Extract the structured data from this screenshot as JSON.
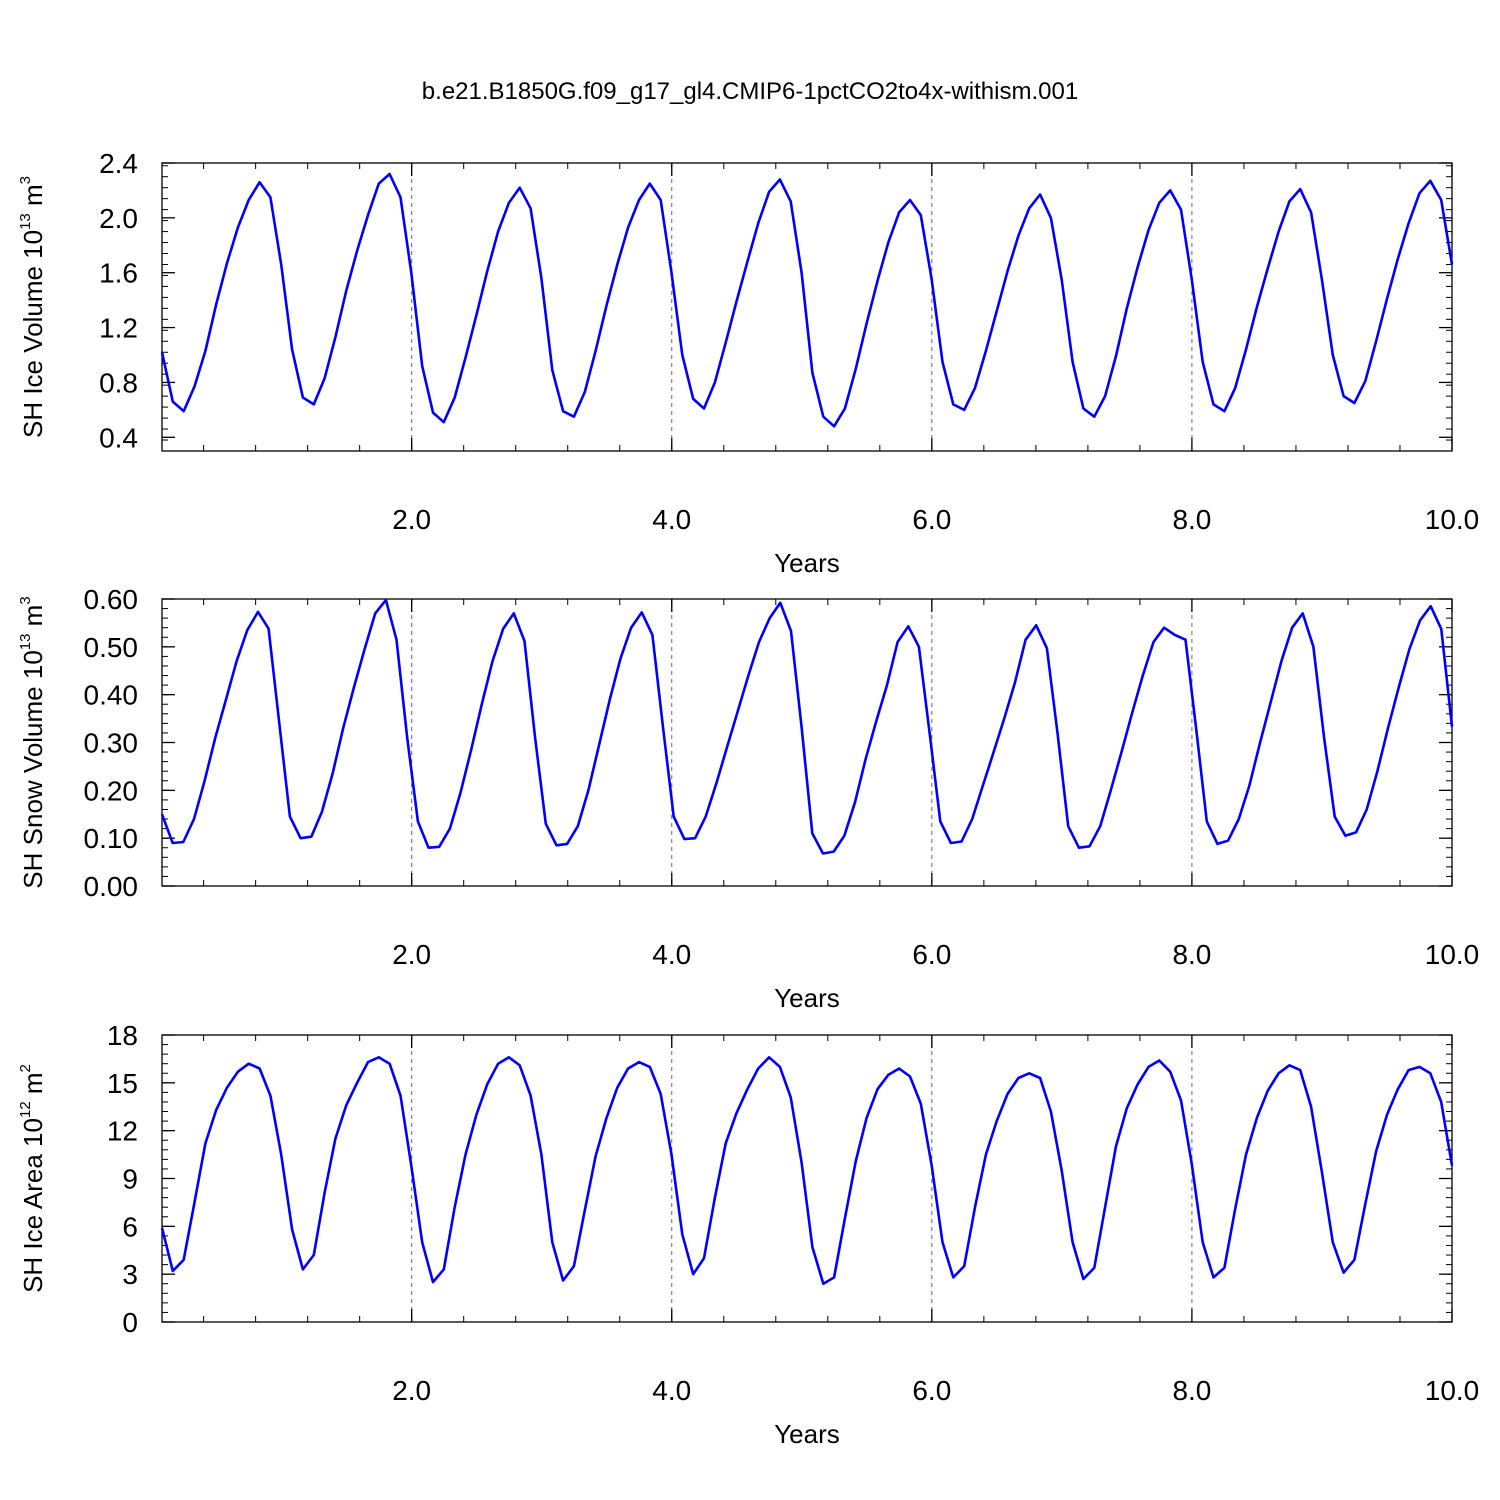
{
  "title": "b.e21.B1850G.f09_g17_gl4.CMIP6-1pctCO2to4x-withism.001",
  "colors": {
    "series": "#0000ff",
    "axis": "#000000",
    "grid": "#666666"
  },
  "chart_data": [
    {
      "type": "line",
      "xlabel": "Years",
      "ylabel": {
        "prefix": "SH Ice Volume 10",
        "exp": "13",
        "unit": " m",
        "unit_exp": "3"
      },
      "xlim": [
        0.08,
        10.0
      ],
      "ylim": [
        0.3,
        2.4
      ],
      "x_ticks": [
        2,
        4,
        6,
        8,
        10
      ],
      "x_tick_labels": [
        "2.0",
        "4.0",
        "6.0",
        "8.0",
        "10.0"
      ],
      "y_ticks": [
        0.4,
        0.8,
        1.2,
        1.6,
        2.0,
        2.4
      ],
      "y_tick_labels": [
        "0.4",
        "0.8",
        "1.2",
        "1.6",
        "2.0",
        "2.4"
      ],
      "grid_x": [
        2,
        4,
        6,
        8
      ],
      "series": [
        {
          "values": [
            1.02,
            0.66,
            0.59,
            0.77,
            1.03,
            1.37,
            1.67,
            1.93,
            2.13,
            2.26,
            2.15,
            1.66,
            1.04,
            0.69,
            0.64,
            0.83,
            1.13,
            1.47,
            1.76,
            2.02,
            2.25,
            2.32,
            2.15,
            1.6,
            0.92,
            0.58,
            0.51,
            0.69,
            0.98,
            1.29,
            1.61,
            1.9,
            2.11,
            2.22,
            2.07,
            1.56,
            0.89,
            0.59,
            0.55,
            0.73,
            1.03,
            1.36,
            1.66,
            1.93,
            2.13,
            2.25,
            2.13,
            1.6,
            1.0,
            0.68,
            0.61,
            0.8,
            1.09,
            1.39,
            1.68,
            1.96,
            2.19,
            2.28,
            2.12,
            1.6,
            0.87,
            0.55,
            0.48,
            0.61,
            0.9,
            1.23,
            1.54,
            1.82,
            2.04,
            2.13,
            2.02,
            1.55,
            0.95,
            0.64,
            0.6,
            0.76,
            1.03,
            1.32,
            1.61,
            1.87,
            2.07,
            2.17,
            2.0,
            1.55,
            0.95,
            0.61,
            0.55,
            0.7,
            0.99,
            1.34,
            1.64,
            1.91,
            2.11,
            2.2,
            2.06,
            1.55,
            0.95,
            0.64,
            0.59,
            0.76,
            1.04,
            1.35,
            1.63,
            1.9,
            2.12,
            2.21,
            2.04,
            1.55,
            1.0,
            0.7,
            0.65,
            0.81,
            1.1,
            1.41,
            1.7,
            1.96,
            2.18,
            2.27,
            2.13,
            1.66
          ]
        }
      ]
    },
    {
      "type": "line",
      "xlabel": "Years",
      "ylabel": {
        "prefix": "SH Snow Volume 10",
        "exp": "13",
        "unit": " m",
        "unit_exp": "3"
      },
      "xlim": [
        0.08,
        10.0
      ],
      "ylim": [
        0.0,
        0.6
      ],
      "x_ticks": [
        2,
        4,
        6,
        8,
        10
      ],
      "x_tick_labels": [
        "2.0",
        "4.0",
        "6.0",
        "8.0",
        "10.0"
      ],
      "y_ticks": [
        0.0,
        0.1,
        0.2,
        0.3,
        0.4,
        0.5,
        0.6
      ],
      "y_tick_labels": [
        "0.00",
        "0.10",
        "0.20",
        "0.30",
        "0.40",
        "0.50",
        "0.60"
      ],
      "grid_x": [
        2,
        4,
        6,
        8
      ],
      "series": [
        {
          "values": [
            0.15,
            0.09,
            0.092,
            0.14,
            0.22,
            0.31,
            0.39,
            0.47,
            0.535,
            0.573,
            0.538,
            0.34,
            0.145,
            0.1,
            0.103,
            0.155,
            0.235,
            0.33,
            0.415,
            0.495,
            0.57,
            0.598,
            0.515,
            0.31,
            0.135,
            0.08,
            0.082,
            0.12,
            0.195,
            0.285,
            0.38,
            0.47,
            0.538,
            0.57,
            0.512,
            0.31,
            0.13,
            0.085,
            0.088,
            0.125,
            0.2,
            0.295,
            0.39,
            0.475,
            0.54,
            0.572,
            0.525,
            0.33,
            0.145,
            0.098,
            0.1,
            0.145,
            0.215,
            0.29,
            0.365,
            0.44,
            0.51,
            0.56,
            0.592,
            0.533,
            0.33,
            0.11,
            0.068,
            0.072,
            0.105,
            0.175,
            0.265,
            0.345,
            0.42,
            0.51,
            0.543,
            0.5,
            0.32,
            0.135,
            0.09,
            0.093,
            0.14,
            0.21,
            0.28,
            0.35,
            0.425,
            0.515,
            0.545,
            0.497,
            0.32,
            0.125,
            0.08,
            0.083,
            0.125,
            0.2,
            0.28,
            0.362,
            0.44,
            0.51,
            0.54,
            0.525,
            0.515,
            0.33,
            0.135,
            0.088,
            0.095,
            0.14,
            0.21,
            0.3,
            0.385,
            0.47,
            0.54,
            0.57,
            0.5,
            0.31,
            0.145,
            0.105,
            0.112,
            0.16,
            0.24,
            0.33,
            0.415,
            0.495,
            0.555,
            0.585,
            0.537,
            0.333
          ]
        }
      ]
    },
    {
      "type": "line",
      "xlabel": "Years",
      "ylabel": {
        "prefix": "SH Ice Area 10",
        "exp": "12",
        "unit": " m",
        "unit_exp": "2"
      },
      "xlim": [
        0.08,
        10.0
      ],
      "ylim": [
        0,
        18
      ],
      "x_ticks": [
        2,
        4,
        6,
        8,
        10
      ],
      "x_tick_labels": [
        "2.0",
        "4.0",
        "6.0",
        "8.0",
        "10.0"
      ],
      "y_ticks": [
        0,
        3,
        6,
        9,
        12,
        15,
        18
      ],
      "y_tick_labels": [
        "0",
        "3",
        "6",
        "9",
        "12",
        "15",
        "18"
      ],
      "grid_x": [
        2,
        4,
        6,
        8
      ],
      "series": [
        {
          "values": [
            5.9,
            3.2,
            3.9,
            7.5,
            11.2,
            13.3,
            14.7,
            15.7,
            16.2,
            15.9,
            14.2,
            10.5,
            5.8,
            3.3,
            4.2,
            8.1,
            11.5,
            13.6,
            15.0,
            16.3,
            16.6,
            16.2,
            14.2,
            9.8,
            5.0,
            2.5,
            3.3,
            7.2,
            10.5,
            13.0,
            14.9,
            16.2,
            16.6,
            16.1,
            14.2,
            10.5,
            5.0,
            2.6,
            3.5,
            7.0,
            10.4,
            12.8,
            14.7,
            15.9,
            16.3,
            16.0,
            14.3,
            10.5,
            5.5,
            3.0,
            4.0,
            7.8,
            11.2,
            13.1,
            14.6,
            15.9,
            16.6,
            16.0,
            14.1,
            10.0,
            4.7,
            2.4,
            2.8,
            6.5,
            10.1,
            12.8,
            14.6,
            15.5,
            15.9,
            15.4,
            13.7,
            9.8,
            5.0,
            2.8,
            3.5,
            7.2,
            10.5,
            12.6,
            14.3,
            15.3,
            15.6,
            15.3,
            13.2,
            9.5,
            5.0,
            2.7,
            3.4,
            7.2,
            11.0,
            13.4,
            14.9,
            16.0,
            16.4,
            15.7,
            13.9,
            9.9,
            5.0,
            2.8,
            3.4,
            7.1,
            10.5,
            12.8,
            14.5,
            15.6,
            16.1,
            15.8,
            13.5,
            9.4,
            5.0,
            3.1,
            3.9,
            7.4,
            10.7,
            13.0,
            14.6,
            15.8,
            16.0,
            15.6,
            13.8,
            9.8
          ]
        }
      ]
    }
  ]
}
